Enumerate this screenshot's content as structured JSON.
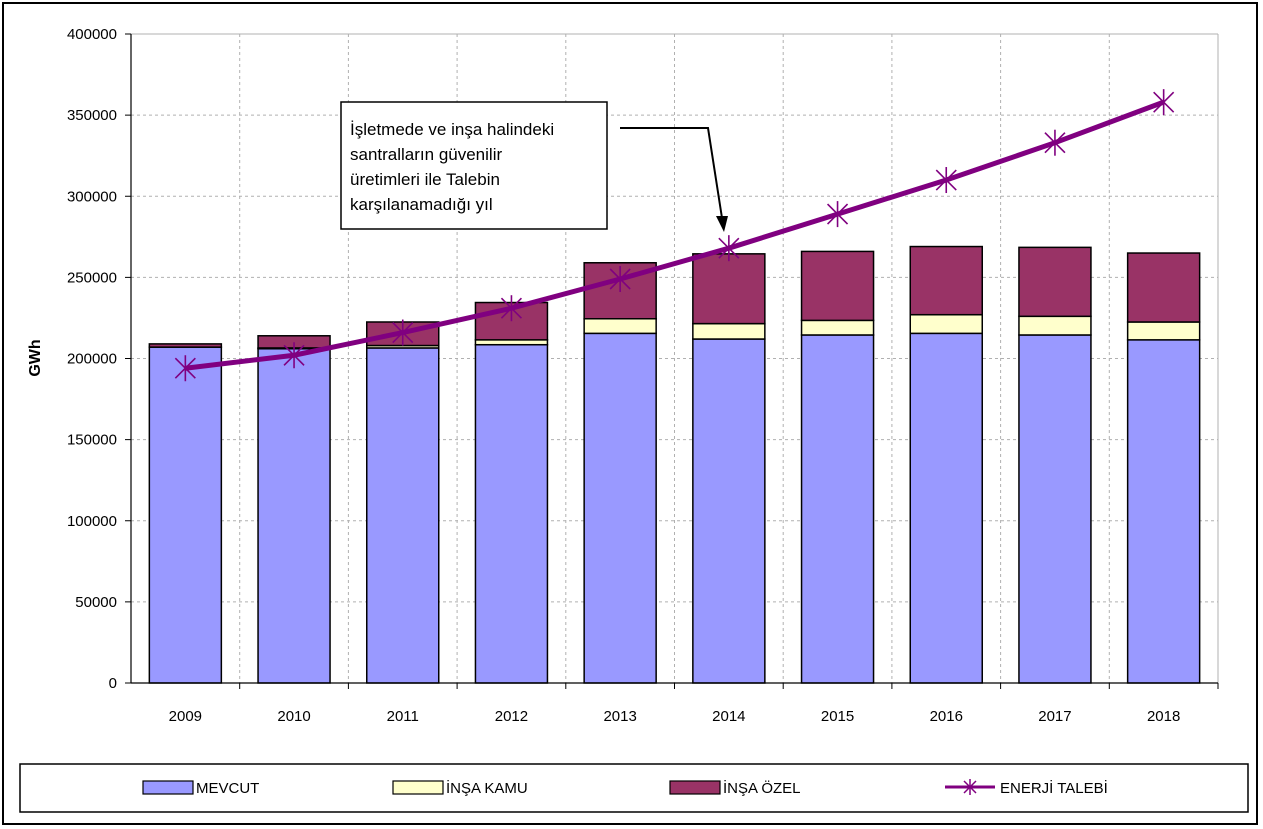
{
  "chart_data": {
    "type": "bar",
    "stacked": true,
    "categories": [
      "2009",
      "2010",
      "2011",
      "2012",
      "2013",
      "2014",
      "2015",
      "2016",
      "2017",
      "2018"
    ],
    "series": [
      {
        "name": "MEVCUT",
        "kind": "bar",
        "color": "#9999ff",
        "values": [
          207000,
          206000,
          206500,
          208500,
          215500,
          212000,
          214500,
          215500,
          214500,
          211500
        ]
      },
      {
        "name": "İNŞA KAMU",
        "kind": "bar",
        "color": "#ffffcc",
        "values": [
          0,
          500,
          1500,
          3000,
          9000,
          9500,
          9000,
          11500,
          11500,
          11000
        ]
      },
      {
        "name": "İNŞA ÖZEL",
        "kind": "bar",
        "color": "#993366",
        "values": [
          2000,
          7500,
          14500,
          23000,
          34500,
          43000,
          42500,
          42000,
          42500,
          42500
        ]
      },
      {
        "name": "ENERJİ TALEBİ",
        "kind": "line",
        "color": "#800080",
        "values": [
          194000,
          202000,
          216000,
          231000,
          249000,
          268000,
          289000,
          310000,
          333000,
          358000
        ]
      }
    ],
    "ylabel": "GWh",
    "ylim": [
      0,
      400000
    ],
    "yticks": [
      "0",
      "50000",
      "100000",
      "150000",
      "200000",
      "250000",
      "300000",
      "350000",
      "400000"
    ],
    "grid": true,
    "legend_position": "bottom",
    "annotation": {
      "lines": [
        "İşletmede ve inşa halindeki",
        "santralların güvenilir",
        "üretimleri ile Talebin",
        "karşılanamadığı yıl"
      ],
      "points_to": "2014"
    }
  }
}
